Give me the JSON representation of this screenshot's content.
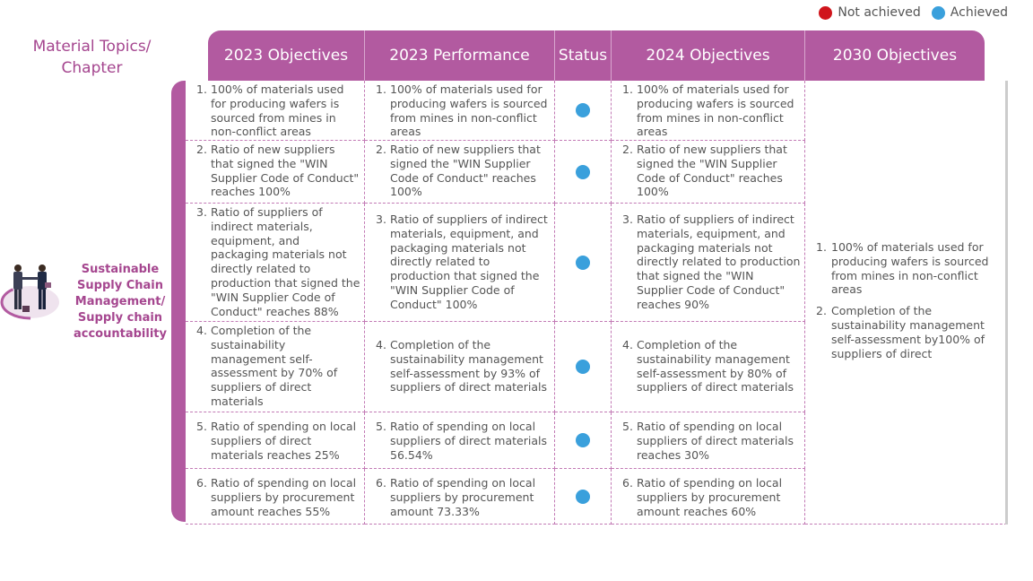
{
  "legend": {
    "not_achieved": "Not achieved",
    "achieved": "Achieved",
    "not_achieved_color": "#d0151c",
    "achieved_color": "#3aa0dc"
  },
  "topic_header": {
    "line1": "Material Topics/",
    "line2": "Chapter"
  },
  "columns": [
    "2023 Objectives",
    "2023 Performance",
    "Status",
    "2024 Objectives",
    "2030 Objectives"
  ],
  "topic": {
    "line1": "Sustainable",
    "line2": "Supply Chain",
    "line3": "Management/",
    "line4": "Supply chain",
    "line5": "accountability"
  },
  "rows": [
    {
      "num": "1.",
      "obj2023": "100% of materials used for producing wafers is sourced from mines in non-conflict areas",
      "perf2023": "100% of materials used for producing wafers is sourced from mines in non-conflict areas",
      "status": "Achieved",
      "obj2024": "100% of materials used for producing wafers is sourced from mines in non-conflict areas"
    },
    {
      "num": "2.",
      "obj2023": "Ratio of new suppliers that signed the \"WIN Supplier Code of Conduct\" reaches 100%",
      "perf2023": "Ratio of new suppliers that signed the \"WIN Supplier Code of Conduct\" reaches 100%",
      "status": "Achieved",
      "obj2024": "Ratio of new suppliers that signed the \"WIN Supplier Code of Conduct\" reaches 100%"
    },
    {
      "num": "3.",
      "obj2023": "Ratio of suppliers of indirect materials, equipment, and packaging materials not directly related to production that signed the \"WIN Supplier Code of Conduct\" reaches 88%",
      "perf2023": "Ratio of suppliers of indirect materials, equipment, and packaging materials not directly related to production that signed the \"WIN Supplier Code of Conduct\" 100%",
      "status": "Achieved",
      "obj2024": "Ratio of suppliers of indirect materials, equipment, and packaging materials not directly related to production that signed the \"WIN Supplier Code of Conduct\" reaches 90%"
    },
    {
      "num": "4.",
      "obj2023": "Completion of the sustainability management self-assessment by 70% of suppliers of direct materials",
      "perf2023": "Completion of the sustainability management self-assessment by 93% of suppliers of direct materials",
      "status": "Achieved",
      "obj2024": "Completion of the sustainability management self-assessment by 80% of suppliers of direct materials"
    },
    {
      "num": "5.",
      "obj2023": "Ratio of spending on local suppliers of direct materials reaches 25%",
      "perf2023": "Ratio of spending on local suppliers of direct materials 56.54%",
      "status": "Achieved",
      "obj2024": "Ratio of spending on local suppliers of direct materials reaches 30%"
    },
    {
      "num": "6.",
      "obj2023": "Ratio of spending on local suppliers by procurement amount reaches 55%",
      "perf2023": "Ratio of spending on local suppliers by procurement amount 73.33%",
      "status": "Achieved",
      "obj2024": "Ratio of spending on local suppliers by procurement amount reaches 60%"
    }
  ],
  "obj2030": [
    {
      "num": "1.",
      "text": "100% of materials used for producing wafers is sourced from mines in non-conflict areas"
    },
    {
      "num": "2.",
      "text": "Completion of the sustainability management self-assessment by100% of suppliers of direct"
    }
  ]
}
